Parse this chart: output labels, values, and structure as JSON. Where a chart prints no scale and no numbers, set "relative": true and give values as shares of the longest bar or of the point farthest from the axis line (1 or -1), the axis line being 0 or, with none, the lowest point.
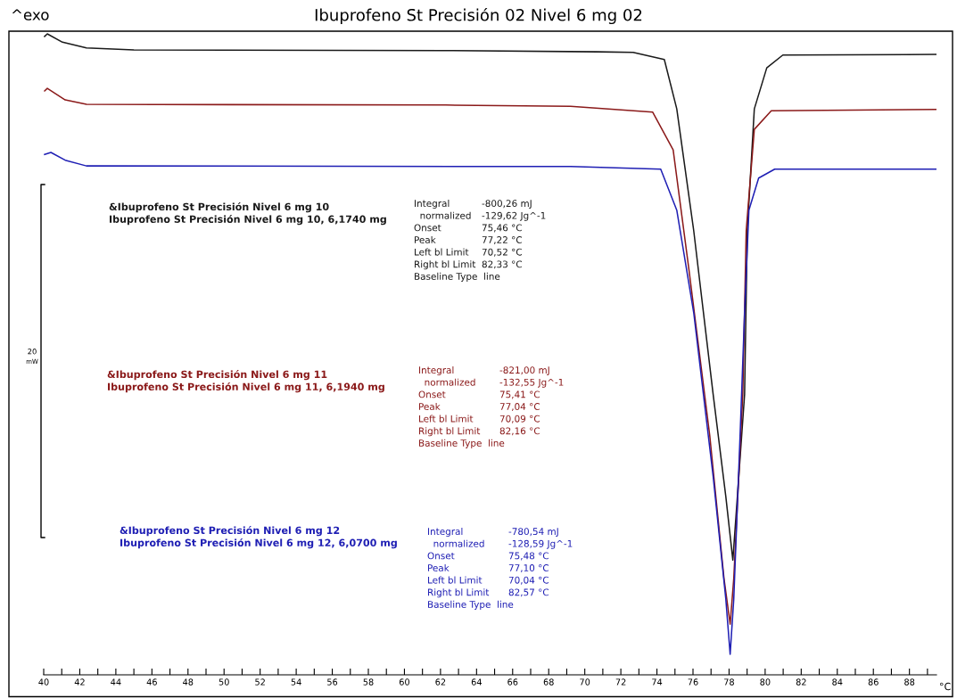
{
  "chart_data": {
    "type": "line",
    "relative": true,
    "title": "Ibuprofeno St Precisión 02 Nivel 6 mg 02",
    "xlabel": "°C",
    "xlim": [
      40,
      89.5
    ],
    "xticks": [
      40,
      {
        "value": 41,
        "label": null
      },
      42,
      {
        "value": 43,
        "label": null
      },
      44,
      {
        "value": 45,
        "label": null
      },
      46,
      {
        "value": 47,
        "label": null
      },
      48,
      {
        "value": 49,
        "label": null
      },
      50,
      {
        "value": 51,
        "label": null
      },
      52,
      {
        "value": 53,
        "label": null
      },
      54,
      {
        "value": 55,
        "label": null
      },
      56,
      {
        "value": 57,
        "label": null
      },
      58,
      {
        "value": 59,
        "label": null
      },
      60,
      {
        "value": 61,
        "label": null
      },
      62,
      {
        "value": 63,
        "label": null
      },
      64,
      {
        "value": 65,
        "label": null
      },
      66,
      {
        "value": 67,
        "label": null
      },
      68,
      {
        "value": 69,
        "label": null
      },
      70,
      {
        "value": 71,
        "label": null
      },
      72,
      {
        "value": 73,
        "label": null
      },
      74,
      {
        "value": 75,
        "label": null
      },
      76,
      {
        "value": 77,
        "label": null
      },
      78,
      {
        "value": 79,
        "label": null
      },
      80,
      {
        "value": 81,
        "label": null
      },
      82,
      {
        "value": 83,
        "label": null
      },
      84,
      {
        "value": 85,
        "label": null
      },
      86,
      {
        "value": 87,
        "label": null
      },
      88,
      {
        "value": 89,
        "label": null
      }
    ],
    "grid": false,
    "legend": false,
    "marker": "none",
    "line_style": "solid",
    "tick_labels": "x",
    "series": [
      {
        "color": "#1a1a1a",
        "x": [
          40.05,
          40.2,
          41.04,
          42.37,
          45.0,
          62.29,
          70.7,
          72.68,
          74.41,
          75.1,
          76.04,
          77.12,
          77.82,
          78.21,
          78.86,
          79.01,
          79.4,
          80.09,
          80.98,
          89.48
        ],
        "values": [
          0.996,
          1.0,
          0.987,
          0.978,
          0.975,
          0.974,
          0.972,
          0.971,
          0.96,
          0.883,
          0.693,
          0.437,
          0.278,
          0.179,
          0.437,
          0.693,
          0.883,
          0.947,
          0.967,
          0.968
        ]
      },
      {
        "color": "#8b1a1a",
        "x": [
          40.05,
          40.2,
          41.19,
          42.37,
          62.29,
          69.21,
          73.76,
          74.9,
          75.79,
          76.93,
          77.72,
          78.06,
          78.26,
          78.76,
          78.95,
          79.4,
          80.34,
          89.48
        ],
        "values": [
          0.911,
          0.915,
          0.897,
          0.89,
          0.889,
          0.887,
          0.878,
          0.819,
          0.629,
          0.373,
          0.15,
          0.079,
          0.15,
          0.437,
          0.693,
          0.851,
          0.88,
          0.882
        ]
      },
      {
        "color": "#1f1fb4",
        "x": [
          40.05,
          40.4,
          41.19,
          42.37,
          69.21,
          74.21,
          75.1,
          76.04,
          77.12,
          77.82,
          78.06,
          78.26,
          78.61,
          78.86,
          79.1,
          79.64,
          80.53,
          89.48
        ],
        "values": [
          0.812,
          0.815,
          0.803,
          0.794,
          0.793,
          0.789,
          0.725,
          0.565,
          0.309,
          0.118,
          0.032,
          0.118,
          0.373,
          0.565,
          0.725,
          0.775,
          0.789,
          0.789
        ]
      }
    ],
    "annotations": [
      "^exo",
      "20",
      "mW",
      "&Ibuprofeno St Precisión Nivel 6 mg 10\nIbuprofeno St Precisión Nivel 6 mg 10, 6,1740 mg",
      "Integral\n  normalized\nOnset\nPeak\nLeft bl Limit\nRight bl Limit\nBaseline Type  line",
      "-800,26 mJ\n-129,62 Jg^-1\n75,46 °C\n77,22 °C\n70,52 °C\n82,33 °C",
      "&Ibuprofeno St Precisión Nivel 6 mg 11\nIbuprofeno St Precisión Nivel 6 mg 11, 6,1940 mg",
      "Integral\n  normalized\nOnset\nPeak\nLeft bl Limit\nRight bl Limit\nBaseline Type  line",
      "-821,00 mJ\n-132,55 Jg^-1\n75,41 °C\n77,04 °C\n70,09 °C\n82,16 °C",
      "&Ibuprofeno St Precisión Nivel 6 mg 12\nIbuprofeno St Precisión Nivel 6 mg 12, 6,0700 mg",
      "Integral\n  normalized\nOnset\nPeak\nLeft bl Limit\nRight bl Limit\nBaseline Type  line",
      "-780,54 mJ\n-128,59 Jg^-1\n75,48 °C\n77,10 °C\n70,04 °C\n82,57 °C"
    ]
  }
}
